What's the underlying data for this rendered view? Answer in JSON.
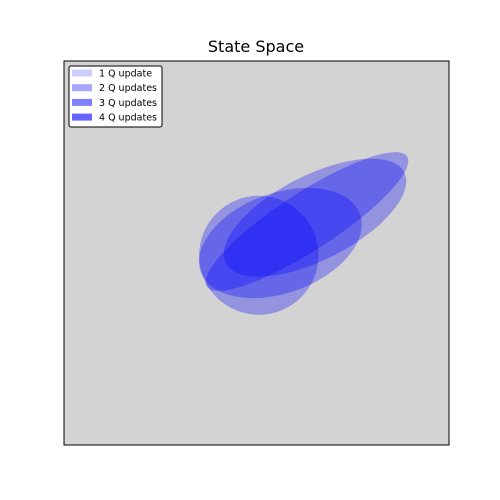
{
  "chart_data": {
    "type": "scatter",
    "title": "State Space",
    "xlabel": "",
    "ylabel": "",
    "xlim": [
      0,
      100
    ],
    "ylim": [
      0,
      100
    ],
    "axis_ticks_visible": false,
    "grid": false,
    "background_color": "#d3d3d3",
    "legend_position": "top-left",
    "series_color": "#0000ff",
    "legend": [
      {
        "label": "1 Q update",
        "alpha": 0.2
      },
      {
        "label": "2 Q updates",
        "alpha": 0.35
      },
      {
        "label": "3 Q updates",
        "alpha": 0.5
      },
      {
        "label": "4 Q updates",
        "alpha": 0.6
      }
    ],
    "ellipses": [
      {
        "cx": 50.6,
        "cy": 49.4,
        "rx": 15.5,
        "ry": 15.5,
        "angle": 0,
        "alpha": 0.3
      },
      {
        "cx": 56.2,
        "cy": 52.6,
        "rx": 22,
        "ry": 13,
        "angle": 20,
        "alpha": 0.3
      },
      {
        "cx": 63.1,
        "cy": 58.2,
        "rx": 31,
        "ry": 7.5,
        "angle": 33,
        "alpha": 0.3
      },
      {
        "cx": 65.2,
        "cy": 59.2,
        "rx": 26,
        "ry": 11,
        "angle": 27,
        "alpha": 0.3
      }
    ]
  }
}
